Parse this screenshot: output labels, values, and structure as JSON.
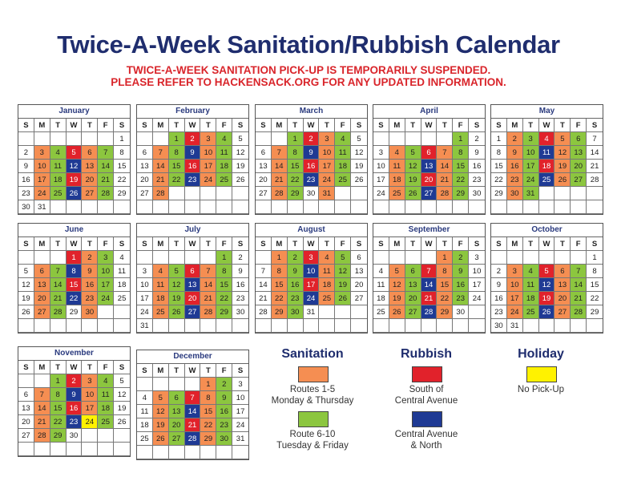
{
  "title": "Twice-A-Week Sanitation/Rubbish Calendar",
  "notice": [
    "TWICE-A-WEEK SANITATION PICK-UP IS TEMPORARILY SUSPENDED.",
    "PLEASE REFER TO HACKENSACK.ORG FOR ANY UPDATED INFORMATION."
  ],
  "weekdays": [
    "S",
    "M",
    "T",
    "W",
    "T",
    "F",
    "S"
  ],
  "color_key": {
    "o": "#f58e52",
    "g": "#8cc63f",
    "r": "#e1222b",
    "b": "#1f3a94",
    "y": "#fff200",
    "w": "#ffffff"
  },
  "months": [
    {
      "name": "January",
      "start_weekday": 6,
      "days": 31,
      "colors": "wwogrogwwogbogwwogrogwwogbogwww"
    },
    {
      "name": "February",
      "start_weekday": 2,
      "days": 28,
      "colors": "grogwwogbogwwogrogwwogbogwwo"
    },
    {
      "name": "March",
      "start_weekday": 2,
      "days": 31,
      "colors": "grogwwogbogwwogrogwwogbogwwogwo"
    },
    {
      "name": "April",
      "start_weekday": 5,
      "days": 30,
      "colors": "gwwogrogwwogbogwwogrogwwogbogw"
    },
    {
      "name": "May",
      "start_weekday": 0,
      "days": 31,
      "colors": "wogrogwwogbogwwogrogwwogbogwwog"
    },
    {
      "name": "June",
      "start_weekday": 3,
      "days": 30,
      "colors": "rogwwogbogwwogrogwwogbogwwogwo"
    },
    {
      "name": "July",
      "start_weekday": 5,
      "days": 31,
      "colors": "gwwogrogwwogbogwwogrogwwogbogww"
    },
    {
      "name": "August",
      "start_weekday": 1,
      "days": 31,
      "colors": "ogrogwwogbogwwogrogwwogbogwwogw"
    },
    {
      "name": "September",
      "start_weekday": 4,
      "days": 30,
      "colors": "ogwwogrogwwogbogwwogrogwwogbow"
    },
    {
      "name": "October",
      "start_weekday": 6,
      "days": 31,
      "colors": "wwogrogwwogbogwwogrogwwogbogwww"
    },
    {
      "name": "November",
      "start_weekday": 2,
      "days": 30,
      "colors": "grogwwogbogwwogrogwwogbygwwogw"
    },
    {
      "name": "December",
      "start_weekday": 4,
      "days": 31,
      "colors": "ogwwogrogwwogbogwwogrogwwogbogw"
    }
  ],
  "legend": {
    "sanitation": {
      "heading": "Sanitation",
      "items": [
        {
          "color": "#f58e52",
          "lines": [
            "Routes 1-5",
            "Monday & Thursday"
          ]
        },
        {
          "color": "#8cc63f",
          "lines": [
            "Route 6-10",
            "Tuesday & Friday"
          ]
        }
      ]
    },
    "rubbish": {
      "heading": "Rubbish",
      "items": [
        {
          "color": "#e1222b",
          "lines": [
            "South of",
            "Central Avenue"
          ]
        },
        {
          "color": "#1f3a94",
          "lines": [
            "Central Avenue",
            "& North"
          ]
        }
      ]
    },
    "holiday": {
      "heading": "Holiday",
      "items": [
        {
          "color": "#fff200",
          "lines": [
            "No Pick-Up"
          ]
        }
      ]
    }
  }
}
